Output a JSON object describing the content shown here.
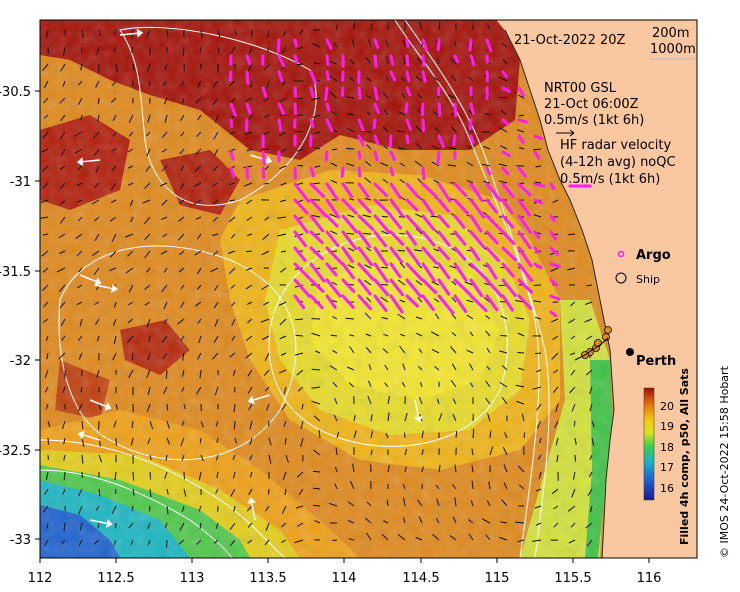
{
  "map": {
    "lon_range": [
      112,
      116.3
    ],
    "lat_range": [
      -33.12,
      -30.0
    ],
    "x_ticks": [
      "112",
      "112.5",
      "113",
      "113.5",
      "114",
      "114.5",
      "115",
      "115.5",
      "116"
    ],
    "y_ticks": [
      "-30.5",
      "-31",
      "-31.5",
      "-32",
      "-32.5",
      "-33"
    ],
    "land_color": "#f9c8a0"
  },
  "annotations": {
    "timestamp": "21-Oct-2022 20Z",
    "contour_shallow": "200m",
    "contour_deep": "1000m",
    "nrt_line1": "NRT00 GSL",
    "nrt_line2": "21-Oct 06:00Z",
    "nrt_line3": "0.5m/s (1kt 6h)",
    "hf_line1": "HF radar velocity",
    "hf_line2": "(4-12h avg) noQC",
    "hf_line3": "0.5m/s (1kt 6h)"
  },
  "legend": {
    "argo": "Argo",
    "ship": "Ship",
    "argo_color": "#ff00ff"
  },
  "places": {
    "perth": "Perth"
  },
  "colorbar": {
    "ticks": [
      "20",
      "19",
      "18",
      "17",
      "16"
    ],
    "title": "Filled 4h comp, p50, All Sats"
  },
  "credit": "© IMOS 24-Oct-2022 15:58 Hobart"
}
